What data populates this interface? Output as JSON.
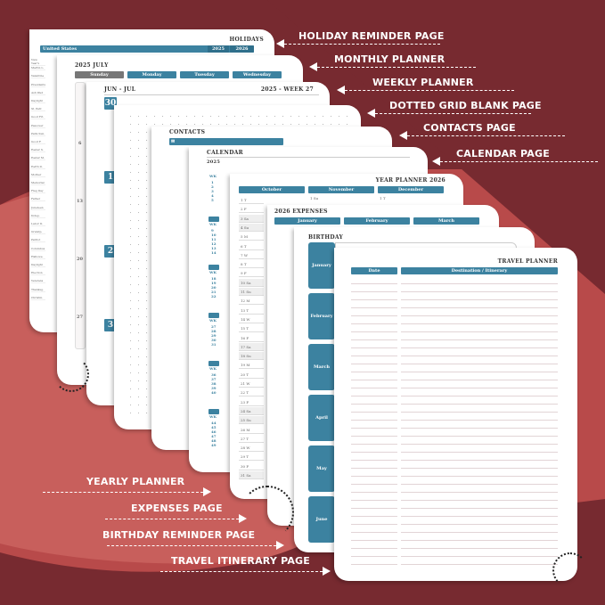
{
  "colors": {
    "accent": "#3c82a0",
    "background_dark": "#772a30",
    "background_mid": "#b84a4a",
    "background_light": "#c85f5c"
  },
  "labels_right": [
    "HOLIDAY REMINDER PAGE",
    "MONTHLY PLANNER",
    "WEEKLY PLANNER",
    "DOTTED GRID BLANK PAGE",
    "CONTACTS PAGE",
    "CALENDAR PAGE"
  ],
  "labels_left": [
    "YEARLY PLANNER",
    "EXPENSES PAGE",
    "BIRTHDAY REMINDER PAGE",
    "TRAVEL ITINERARY PAGE"
  ],
  "holidays": {
    "title": "HOLIDAYS",
    "country": "United States",
    "years": [
      "2025",
      "2026"
    ],
    "items": [
      "New Year's",
      "Martin L.",
      "Valentine",
      "Presidents",
      "Ash Wed",
      "Daylight",
      "St. Patr.",
      "Good Fri.",
      "Passover",
      "Palm Sun.",
      "Good F.",
      "Easter S.",
      "Easter M.",
      "Earth D.",
      "Mother",
      "Memorial",
      "Flag Day",
      "Father",
      "Juneteen",
      "Indep.",
      "Labor D.",
      "Grandp.",
      "Patriot",
      "Columbus",
      "Hallowe.",
      "Daylight",
      "Election",
      "Veterans",
      "Thanksg.",
      "Christm."
    ]
  },
  "monthly": {
    "title": "2025 JULY",
    "days": [
      "Sunday",
      "Monday",
      "Tuesday",
      "Wednesday"
    ],
    "dates": [
      "6",
      "13",
      "20",
      "27"
    ]
  },
  "weekly": {
    "range": "JUN - JUL",
    "week": "2025 - WEEK 27",
    "days": [
      "30",
      "1",
      "2",
      "3"
    ]
  },
  "contacts": {
    "title": "CONTACTS"
  },
  "calendar": {
    "title": "CALENDAR",
    "year": "2025",
    "wk_label": "WK",
    "weeks": [
      [
        "1",
        "2",
        "3",
        "4",
        "5"
      ],
      [
        "9",
        "10",
        "11",
        "12",
        "13",
        "14"
      ],
      [
        "18",
        "19",
        "20",
        "21",
        "22"
      ],
      [
        "27",
        "28",
        "29",
        "30",
        "31"
      ],
      [
        "36",
        "37",
        "38",
        "39",
        "40"
      ],
      [
        "44",
        "45",
        "46",
        "47",
        "48",
        "49"
      ]
    ]
  },
  "year_planner": {
    "title": "YEAR PLANNER 2026",
    "months": [
      "October",
      "November",
      "December"
    ],
    "oct_days": [
      "1 T",
      "2 F",
      "3 Sa",
      "4 Su",
      "5 M",
      "6 T",
      "7 W",
      "8 T",
      "9 F",
      "10 Sa",
      "11 Su",
      "12 M",
      "13 T",
      "14 W",
      "15 T",
      "16 F",
      "17 Sa",
      "18 Su",
      "19 M",
      "20 T",
      "21 W",
      "22 T",
      "23 F",
      "24 Sa",
      "25 Su",
      "26 M",
      "27 T",
      "28 W",
      "29 T",
      "30 F",
      "31 Sa"
    ],
    "nov_first": "1 Su",
    "dec_first": "1 T"
  },
  "expenses": {
    "title": "2026 EXPENSES",
    "months": [
      "January",
      "February",
      "March"
    ]
  },
  "birthday": {
    "title": "BIRTHDAY",
    "months": [
      "January",
      "February",
      "March",
      "April",
      "May",
      "June"
    ]
  },
  "travel": {
    "title": "TRAVEL PLANNER",
    "columns": [
      "Date",
      "Destination / Itinerary"
    ]
  }
}
